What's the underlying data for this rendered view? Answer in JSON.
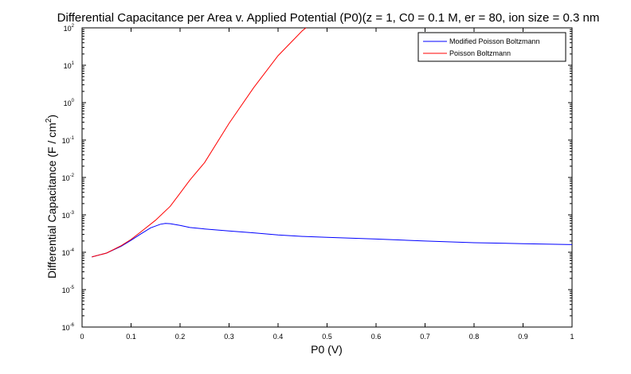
{
  "chart_data": {
    "type": "line",
    "title": "Differential Capacitance per Area v. Applied Potential (P0)(z = 1, C0 = 0.1 M, er = 80, ion size = 0.3 nm",
    "xlabel": "P0 (V)",
    "ylabel": "Differential Capacitance (F / cm",
    "ylabel_sup": "2",
    "ylabel_tail": ")",
    "xlim": [
      0,
      1
    ],
    "ylim": [
      1e-06,
      100
    ],
    "yscale": "log",
    "grid": false,
    "legend_position": "top-right",
    "x_ticks": [
      {
        "value": 0,
        "label": "0"
      },
      {
        "value": 0.1,
        "label": "0.1"
      },
      {
        "value": 0.2,
        "label": "0.2"
      },
      {
        "value": 0.3,
        "label": "0.3"
      },
      {
        "value": 0.4,
        "label": "0.4"
      },
      {
        "value": 0.5,
        "label": "0.5"
      },
      {
        "value": 0.6,
        "label": "0.6"
      },
      {
        "value": 0.7,
        "label": "0.7"
      },
      {
        "value": 0.8,
        "label": "0.8"
      },
      {
        "value": 0.9,
        "label": "0.9"
      },
      {
        "value": 1,
        "label": "1"
      }
    ],
    "y_ticks": [
      {
        "value": 1e-06,
        "base": "10",
        "exp": "-6"
      },
      {
        "value": 1e-05,
        "base": "10",
        "exp": "-5"
      },
      {
        "value": 0.0001,
        "base": "10",
        "exp": "-4"
      },
      {
        "value": 0.001,
        "base": "10",
        "exp": "-3"
      },
      {
        "value": 0.01,
        "base": "10",
        "exp": "-2"
      },
      {
        "value": 0.1,
        "base": "10",
        "exp": "-1"
      },
      {
        "value": 1,
        "base": "10",
        "exp": "0"
      },
      {
        "value": 10,
        "base": "10",
        "exp": "1"
      },
      {
        "value": 100,
        "base": "10",
        "exp": "2"
      }
    ],
    "series": [
      {
        "name": "Modified Poisson Boltzmann",
        "color": "#0000ff",
        "x": [
          0.02,
          0.05,
          0.08,
          0.1,
          0.12,
          0.14,
          0.16,
          0.17,
          0.18,
          0.2,
          0.22,
          0.25,
          0.3,
          0.35,
          0.4,
          0.45,
          0.5,
          0.6,
          0.7,
          0.8,
          0.9,
          1.0
        ],
        "y": [
          7.5e-05,
          9.5e-05,
          0.000145,
          0.00021,
          0.00031,
          0.00045,
          0.00056,
          0.00059,
          0.00058,
          0.00052,
          0.00046,
          0.00042,
          0.00037,
          0.00033,
          0.00029,
          0.000265,
          0.00025,
          0.000225,
          0.0002,
          0.00018,
          0.00017,
          0.00016
        ]
      },
      {
        "name": "Poisson Boltzmann",
        "color": "#ff0000",
        "x": [
          0.02,
          0.05,
          0.08,
          0.1,
          0.12,
          0.15,
          0.18,
          0.2,
          0.22,
          0.25,
          0.3,
          0.35,
          0.4,
          0.45,
          0.457
        ],
        "y": [
          7.5e-05,
          9.5e-05,
          0.00015,
          0.00022,
          0.00035,
          0.00072,
          0.0017,
          0.0038,
          0.0085,
          0.025,
          0.28,
          2.5,
          18,
          85,
          100
        ]
      }
    ]
  }
}
